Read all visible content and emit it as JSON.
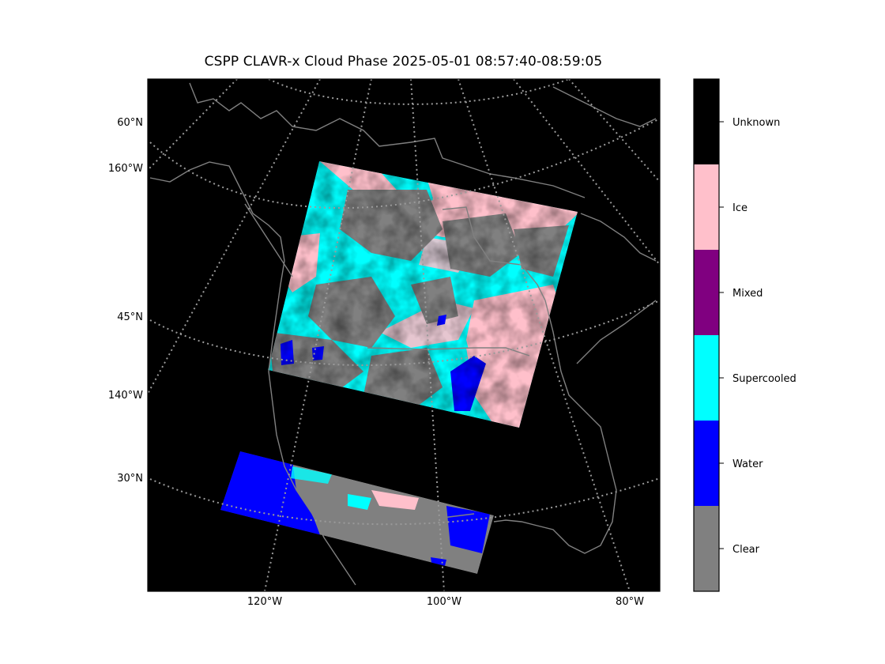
{
  "title": "CSPP CLAVR-x Cloud Phase 2025-05-01 08:57:40-08:59:05",
  "map": {
    "projection": "lambert-conformal (polar-curved graticule)",
    "background": "#000000",
    "coastline_color": "#808080",
    "graticule_color": "#9a9a9a",
    "lat_labels": [
      "60°N",
      "45°N",
      "30°N"
    ],
    "lon_labels_left": [
      "160°W",
      "140°W"
    ],
    "lon_labels_bottom": [
      "120°W",
      "100°W",
      "80°W"
    ]
  },
  "colorbar": {
    "classes": [
      {
        "label": "Unknown",
        "color": "#000000"
      },
      {
        "label": "Ice",
        "color": "#ffc0cb"
      },
      {
        "label": "Mixed",
        "color": "#800080"
      },
      {
        "label": "Supercooled",
        "color": "#00ffff"
      },
      {
        "label": "Water",
        "color": "#0000ff"
      },
      {
        "label": "Clear",
        "color": "#808080"
      }
    ]
  },
  "swaths": [
    {
      "name": "northern granule",
      "dominant": [
        "Supercooled",
        "Clear",
        "Ice",
        "Water"
      ]
    },
    {
      "name": "southern granule",
      "dominant": [
        "Water",
        "Clear",
        "Ice",
        "Supercooled"
      ]
    }
  ]
}
